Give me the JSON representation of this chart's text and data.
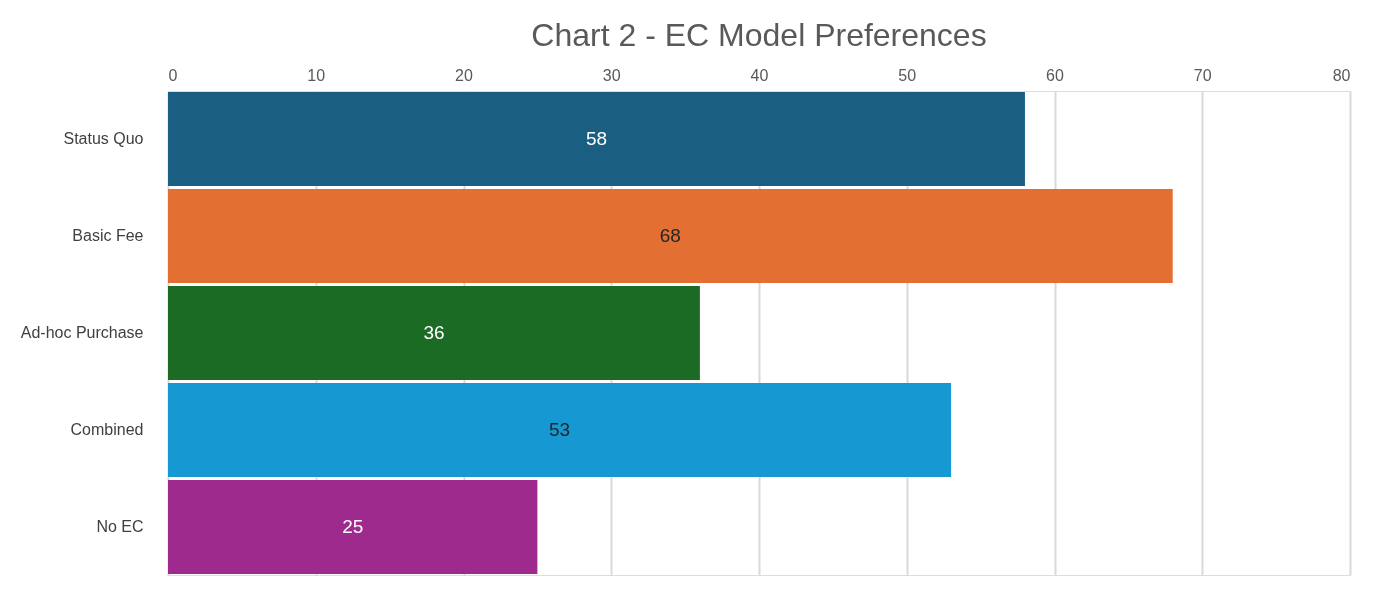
{
  "chart_data": {
    "type": "bar",
    "orientation": "horizontal",
    "title": "Chart 2 - EC Model Preferences",
    "categories": [
      "Status Quo",
      "Basic Fee",
      "Ad-hoc Purchase",
      "Combined",
      "No EC"
    ],
    "values": [
      58,
      68,
      36,
      53,
      25
    ],
    "colors": [
      "#1a5f82",
      "#e46f33",
      "#1c6b25",
      "#1699d2",
      "#9e2a8e"
    ],
    "xlim": [
      0,
      80
    ],
    "xticks": [
      0,
      10,
      20,
      30,
      40,
      50,
      60,
      70,
      80
    ],
    "grid": "x",
    "data_labels": true
  }
}
